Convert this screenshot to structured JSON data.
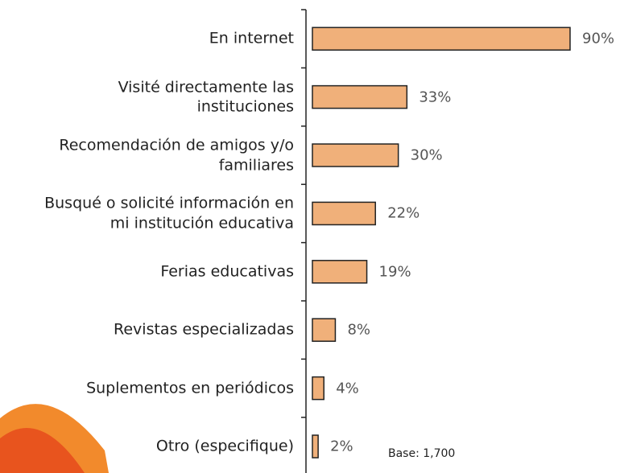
{
  "chart_data": {
    "type": "bar",
    "orientation": "horizontal",
    "categories": [
      "En internet",
      "Visité directamente las\ninstituciones",
      "Recomendación de amigos y/o\nfamiliares",
      "Busqué o solicité información en\nmi institución educativa",
      "Ferias educativas",
      "Revistas especializadas",
      "Suplementos en periódicos",
      "Otro (especifique)"
    ],
    "values": [
      90,
      33,
      30,
      22,
      19,
      8,
      4,
      2
    ],
    "value_labels": [
      "90%",
      "33%",
      "30%",
      "22%",
      "19%",
      "8%",
      "4%",
      "2%"
    ],
    "color": "#f0b07a",
    "note": "Base: 1,700"
  }
}
